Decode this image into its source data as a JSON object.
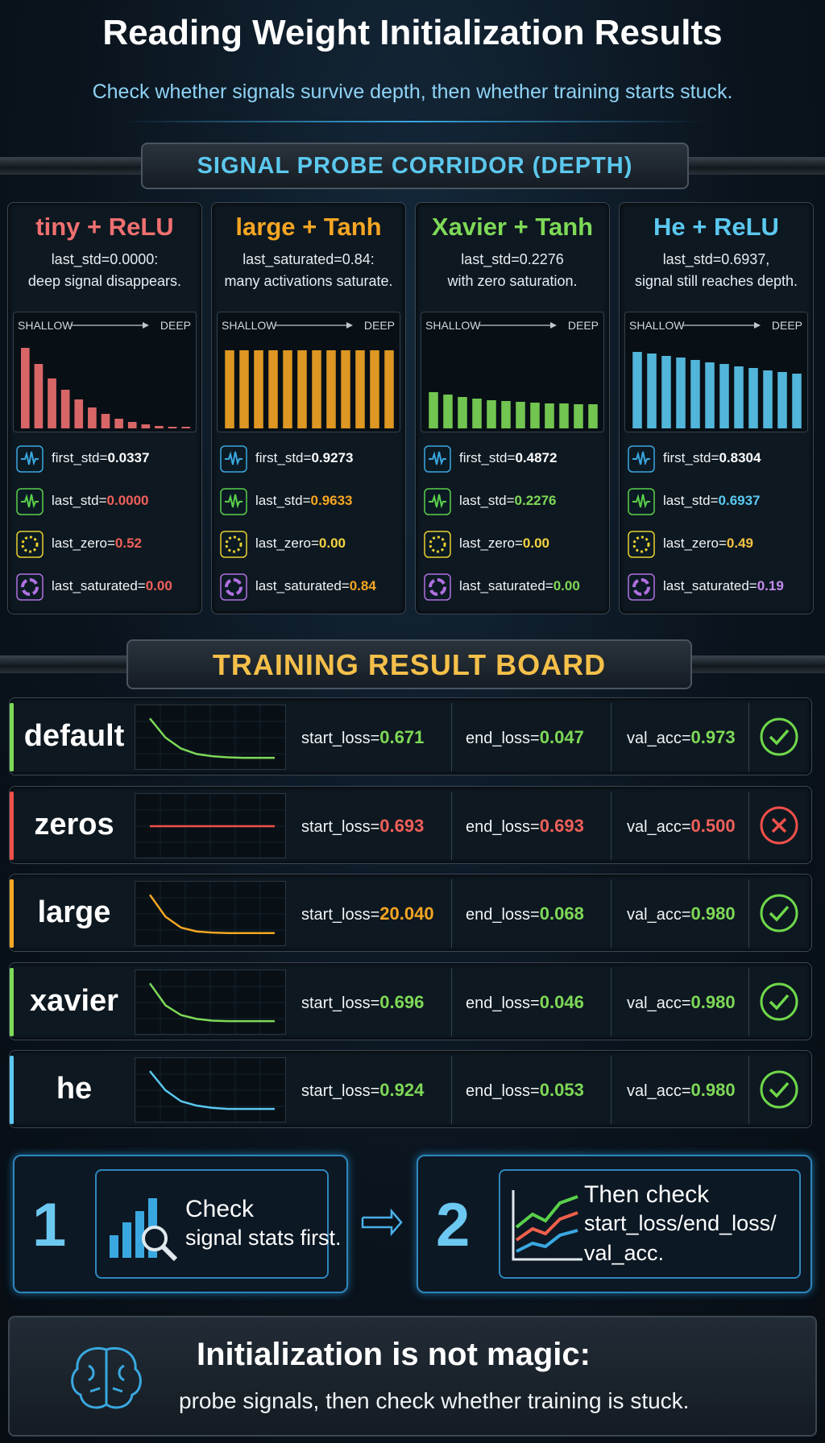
{
  "header": {
    "title": "Reading Weight Initialization Results",
    "subtitle": "Check whether signals survive depth, then whether training starts stuck."
  },
  "probe": {
    "title": "SIGNAL PROBE CORRIDOR (DEPTH)",
    "cards": [
      {
        "title": "tiny + ReLU",
        "color": "#f07070",
        "description": [
          "last_std=0.0000:",
          "deep signal disappears."
        ],
        "axis": [
          "SHALLOW",
          "DEEP"
        ],
        "bars": [
          1.0,
          0.8,
          0.62,
          0.48,
          0.36,
          0.26,
          0.18,
          0.12,
          0.08,
          0.05,
          0.03,
          0.02,
          0.02
        ],
        "stats": [
          {
            "label": "first_std=",
            "value": "0.0337",
            "color": "#ffffff"
          },
          {
            "label": "last_std=",
            "value": "0.0000",
            "color": "#f0605a"
          },
          {
            "label": "last_zero=",
            "value": "0.52",
            "color": "#f0605a"
          },
          {
            "label": "last_saturated=",
            "value": "0.00",
            "color": "#f0605a"
          }
        ]
      },
      {
        "title": "large + Tanh",
        "color": "#f5a623",
        "description": [
          "last_saturated=0.84:",
          "many activations saturate."
        ],
        "axis": [
          "SHALLOW",
          "DEEP"
        ],
        "bars": [
          0.97,
          0.97,
          0.97,
          0.97,
          0.97,
          0.97,
          0.97,
          0.97,
          0.97,
          0.97,
          0.97,
          0.97
        ],
        "stats": [
          {
            "label": "first_std=",
            "value": "0.9273",
            "color": "#ffffff"
          },
          {
            "label": "last_std=",
            "value": "0.9633",
            "color": "#f5a623"
          },
          {
            "label": "last_zero=",
            "value": "0.00",
            "color": "#f5d442"
          },
          {
            "label": "last_saturated=",
            "value": "0.84",
            "color": "#f5a623"
          }
        ]
      },
      {
        "title": "Xavier + Tanh",
        "color": "#7ed957",
        "description": [
          "last_std=0.2276",
          "with zero saturation."
        ],
        "axis": [
          "SHALLOW",
          "DEEP"
        ],
        "bars": [
          0.45,
          0.42,
          0.39,
          0.37,
          0.35,
          0.34,
          0.33,
          0.32,
          0.31,
          0.31,
          0.3,
          0.3
        ],
        "stats": [
          {
            "label": "first_std=",
            "value": "0.4872",
            "color": "#ffffff"
          },
          {
            "label": "last_std=",
            "value": "0.2276",
            "color": "#7ed957"
          },
          {
            "label": "last_zero=",
            "value": "0.00",
            "color": "#f5d442"
          },
          {
            "label": "last_saturated=",
            "value": "0.00",
            "color": "#7ed957"
          }
        ]
      },
      {
        "title": "He + ReLU",
        "color": "#5bc8f0",
        "description": [
          "last_std=0.6937,",
          "signal still reaches depth."
        ],
        "axis": [
          "SHALLOW",
          "DEEP"
        ],
        "bars": [
          0.95,
          0.93,
          0.9,
          0.88,
          0.85,
          0.82,
          0.8,
          0.77,
          0.75,
          0.72,
          0.7,
          0.68
        ],
        "stats": [
          {
            "label": "first_std=",
            "value": "0.8304",
            "color": "#ffffff"
          },
          {
            "label": "last_std=",
            "value": "0.6937",
            "color": "#5bc8f0"
          },
          {
            "label": "last_zero=",
            "value": "0.49",
            "color": "#f5c242"
          },
          {
            "label": "last_saturated=",
            "value": "0.19",
            "color": "#c68cf0"
          }
        ]
      }
    ]
  },
  "training": {
    "title": "TRAINING RESULT BOARD",
    "rows": [
      {
        "name": "default",
        "color": "#7ed957",
        "curve": [
          0.85,
          0.5,
          0.3,
          0.2,
          0.16,
          0.14,
          0.13,
          0.13,
          0.13
        ],
        "start_loss": {
          "label": "start_loss=",
          "value": "0.671",
          "color": "#7ed957"
        },
        "end_loss": {
          "label": "end_loss=",
          "value": "0.047",
          "color": "#7ed957"
        },
        "val_acc": {
          "label": "val_acc=",
          "value": "0.973",
          "color": "#7ed957"
        },
        "status": "pass"
      },
      {
        "name": "zeros",
        "color": "#f0504a",
        "curve": [
          0.5,
          0.5,
          0.5,
          0.5,
          0.5,
          0.5,
          0.5,
          0.5,
          0.5
        ],
        "start_loss": {
          "label": "start_loss=",
          "value": "0.693",
          "color": "#f0605a"
        },
        "end_loss": {
          "label": "end_loss=",
          "value": "0.693",
          "color": "#f0605a"
        },
        "val_acc": {
          "label": "val_acc=",
          "value": "0.500",
          "color": "#f0605a"
        },
        "status": "fail"
      },
      {
        "name": "large",
        "color": "#f5a623",
        "curve": [
          0.85,
          0.45,
          0.25,
          0.18,
          0.16,
          0.15,
          0.15,
          0.15,
          0.15
        ],
        "start_loss": {
          "label": "start_loss=",
          "value": "20.040",
          "color": "#f5a623"
        },
        "end_loss": {
          "label": "end_loss=",
          "value": "0.068",
          "color": "#7ed957"
        },
        "val_acc": {
          "label": "val_acc=",
          "value": "0.980",
          "color": "#7ed957"
        },
        "status": "pass"
      },
      {
        "name": "xavier",
        "color": "#7ed957",
        "curve": [
          0.85,
          0.45,
          0.27,
          0.2,
          0.17,
          0.16,
          0.16,
          0.16,
          0.16
        ],
        "start_loss": {
          "label": "start_loss=",
          "value": "0.696",
          "color": "#7ed957"
        },
        "end_loss": {
          "label": "end_loss=",
          "value": "0.046",
          "color": "#7ed957"
        },
        "val_acc": {
          "label": "val_acc=",
          "value": "0.980",
          "color": "#7ed957"
        },
        "status": "pass"
      },
      {
        "name": "he",
        "color": "#5bc8f0",
        "curve": [
          0.85,
          0.5,
          0.3,
          0.22,
          0.18,
          0.16,
          0.16,
          0.16,
          0.16
        ],
        "start_loss": {
          "label": "start_loss=",
          "value": "0.924",
          "color": "#7ed957"
        },
        "end_loss": {
          "label": "end_loss=",
          "value": "0.053",
          "color": "#7ed957"
        },
        "val_acc": {
          "label": "val_acc=",
          "value": "0.980",
          "color": "#7ed957"
        },
        "status": "pass"
      }
    ]
  },
  "steps": [
    {
      "number": "1",
      "lines": [
        "Check",
        "signal stats first."
      ]
    },
    {
      "number": "2",
      "lines": [
        "Then check",
        "start_loss/end_loss/",
        "val_acc."
      ]
    }
  ],
  "footer": {
    "lines": [
      "Initialization is not magic:",
      "probe signals, then check whether training is stuck."
    ]
  }
}
